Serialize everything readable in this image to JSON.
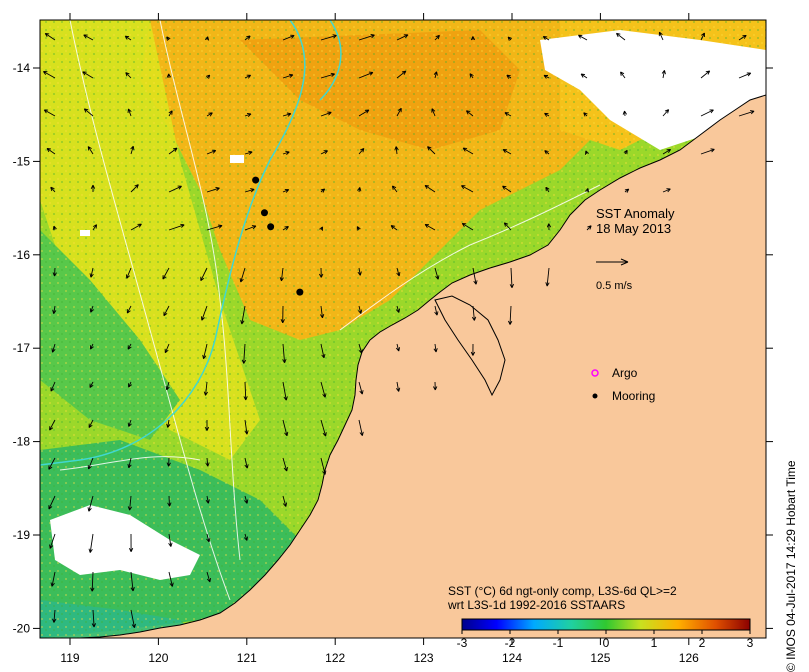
{
  "title": "SST Anomaly",
  "date": "18 May 2013",
  "scale_arrow_label": "0.5 m/s",
  "legend": {
    "argo_label": "Argo",
    "mooring_label": "Mooring",
    "argo_color": "#ff00ff",
    "mooring_color": "#000000"
  },
  "colorbar": {
    "caption_line1": "SST (°C) 6d ngt-only comp, L3S-6d QL>=2",
    "caption_line2": "wrt L3S-1d 1992-2016 SSTAARS",
    "ticks": [
      "-3",
      "-2",
      "-1",
      "0",
      "1",
      "2",
      "3"
    ],
    "min": -3,
    "max": 3
  },
  "axes": {
    "lon_ticks": [
      "119",
      "120",
      "121",
      "122",
      "123",
      "124",
      "125",
      "126"
    ],
    "lat_ticks": [
      "-14",
      "-15",
      "-16",
      "-17",
      "-18",
      "-19",
      "-20"
    ]
  },
  "credit": "© IMOS 04-Jul-2017 14:29 Hobart Time",
  "colors": {
    "land": "#f9c89b",
    "cold_strong": "#00008b",
    "cool": "#00bfff",
    "neutral": "#32cd32",
    "warm": "#ffd700",
    "hot": "#8b0000"
  },
  "moorings": [
    {
      "lon": 121.1,
      "lat": -15.2
    },
    {
      "lon": 121.2,
      "lat": -15.55
    },
    {
      "lon": 121.27,
      "lat": -15.7
    },
    {
      "lon": 121.6,
      "lat": -16.4
    }
  ]
}
